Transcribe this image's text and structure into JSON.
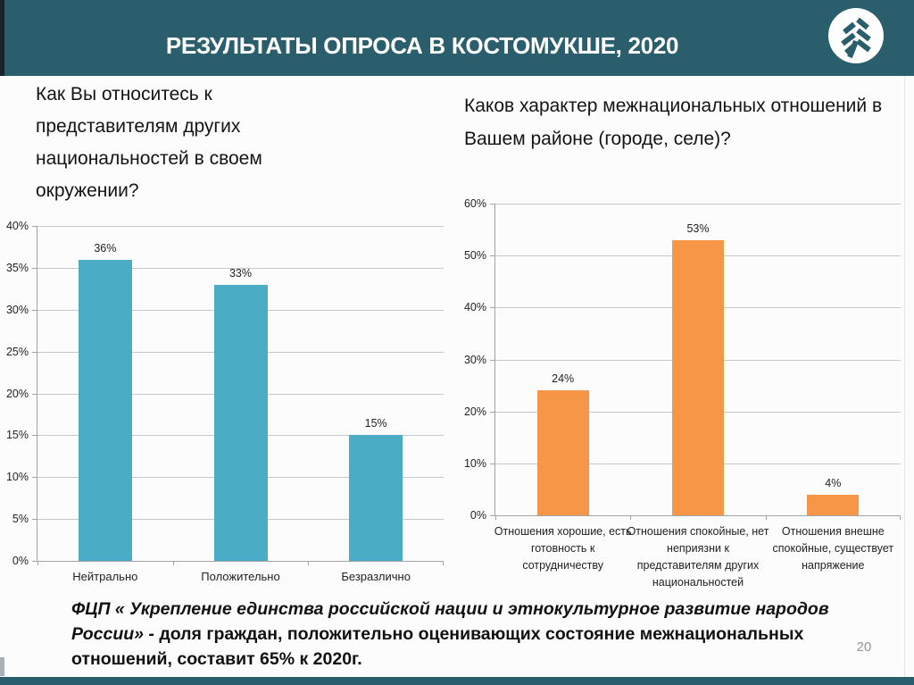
{
  "header": {
    "title": "РЕЗУЛЬТАТЫ ОПРОСА В КОСТОМУКШЕ, 2020",
    "logo_icon": "fir-tree-logo"
  },
  "colors": {
    "header_bg": "#2b5e6c",
    "accent_bar": "#15232b",
    "footer_strip": "#2b5e6c",
    "teal_bar": "#4aacc5",
    "orange_bar": "#f79646",
    "gridline": "#c6c9cc",
    "axis": "#9fa4a8"
  },
  "chart_data": [
    {
      "type": "bar",
      "title": "Как Вы относитесь к представителям других национальностей в своем окружении?",
      "categories": [
        "Нейтрально",
        "Положительно",
        "Безразлично"
      ],
      "values": [
        36,
        33,
        15
      ],
      "data_labels": [
        "36%",
        "33%",
        "15%"
      ],
      "xlabel": "",
      "ylabel": "",
      "ylim": [
        0,
        40
      ],
      "yticks": [
        "0%",
        "5%",
        "10%",
        "15%",
        "20%",
        "25%",
        "30%",
        "35%",
        "40%"
      ],
      "bar_color": "#4aacc5",
      "grid": true,
      "legend": "none"
    },
    {
      "type": "bar",
      "title": "Каков характер межнациональных отношений в Вашем районе (городе, селе)?",
      "categories": [
        "Отношения хорошие, есть готовность к сотрудничеству",
        "Отношения спокойные, нет неприязни к представителям других национальностей",
        "Отношения внешне спокойные, существует напряжение"
      ],
      "values": [
        24,
        53,
        4
      ],
      "data_labels": [
        "24%",
        "53%",
        "4%"
      ],
      "xlabel": "",
      "ylabel": "",
      "ylim": [
        0,
        60
      ],
      "yticks": [
        "0%",
        "10%",
        "20%",
        "30%",
        "40%",
        "50%",
        "60%"
      ],
      "bar_color": "#f79646",
      "grid": true,
      "legend": "none"
    }
  ],
  "footer": {
    "italic_part": "ФЦП « Укрепление единства российской нации и этнокультурное развитие народов России» - ",
    "bold_part": "доля граждан, положительно оценивающих состояние межнациональных отношений, составит 65%  к 2020г.",
    "page_number": "20"
  }
}
